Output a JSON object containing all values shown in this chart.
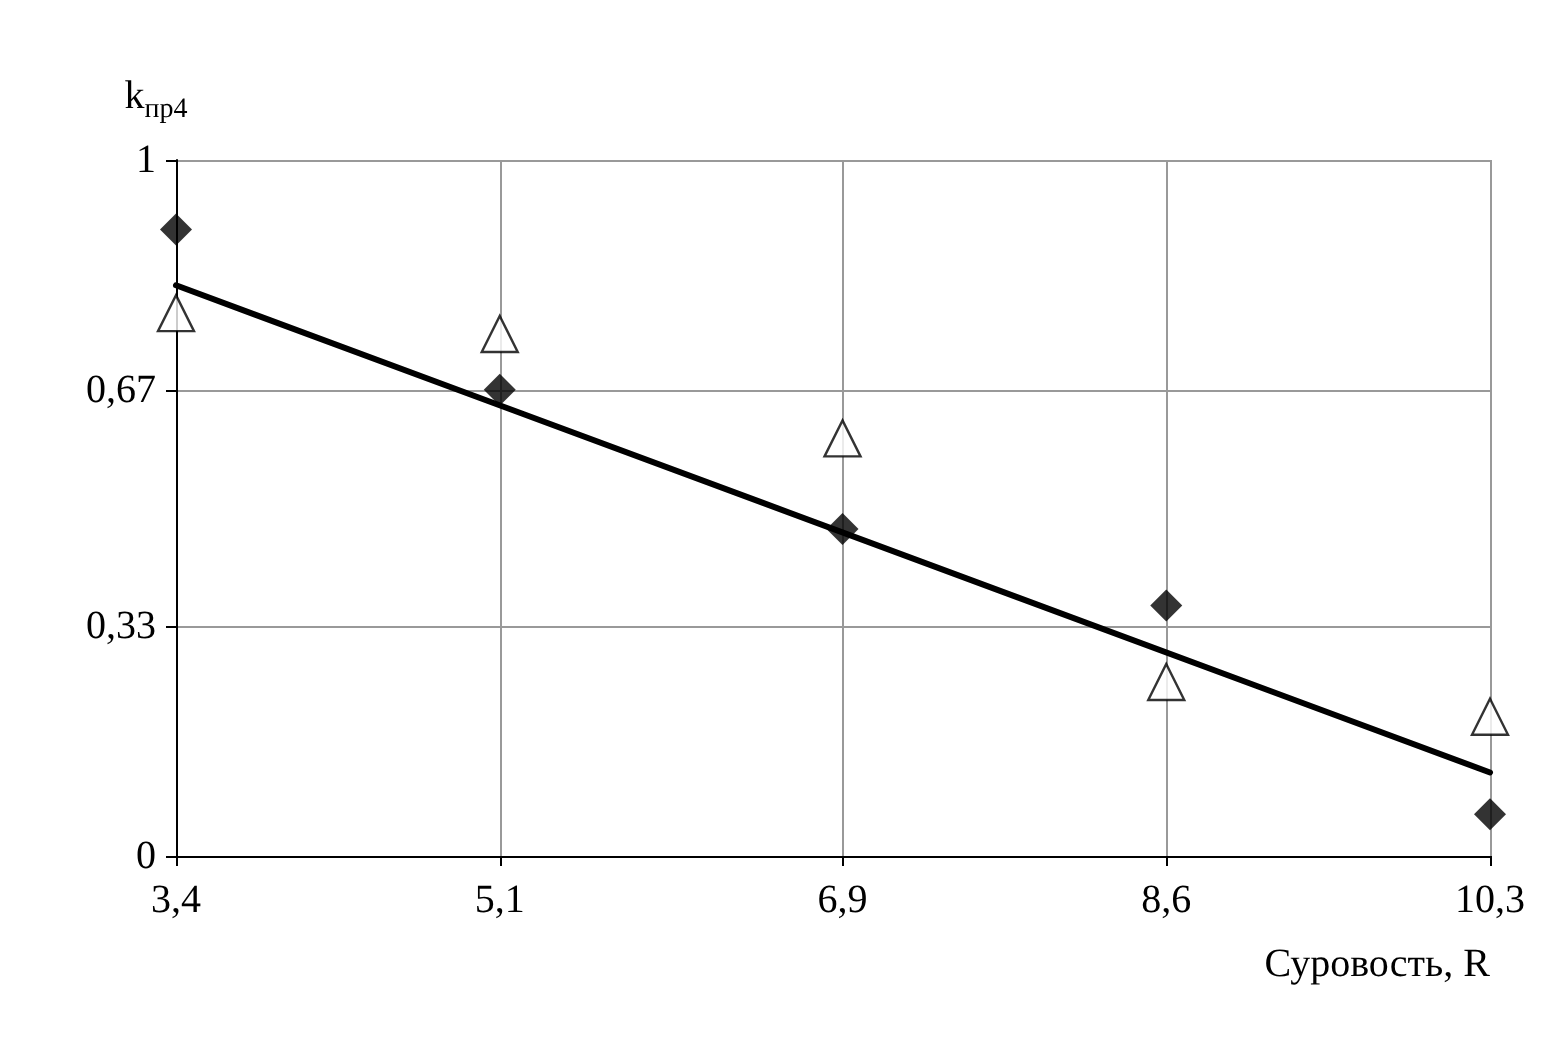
{
  "chart_data": {
    "type": "scatter",
    "xlabel": "Суровость, R",
    "ylabel": "k$_{пр4}$",
    "series": [
      {
        "marker": "diamond",
        "color": "#000000",
        "x": [
          3.4,
          5.1,
          6.9,
          8.6,
          10.3
        ],
        "values": [
          0.9,
          0.67,
          0.47,
          0.36,
          0.06
        ]
      },
      {
        "marker": "triangle",
        "color": "#000000",
        "x": [
          3.4,
          5.1,
          6.9,
          8.6,
          10.3
        ],
        "values": [
          0.78,
          0.75,
          0.6,
          0.25,
          0.2
        ]
      },
      {
        "type": "line",
        "marker": "none",
        "color": "#000000",
        "x": [
          3.4,
          10.3
        ],
        "values": [
          0.82,
          0.12
        ]
      }
    ],
    "xlim": [
      3.4,
      10.3
    ],
    "xticks": [
      {
        "value": 3.4,
        "label": "3,4"
      },
      {
        "value": 5.1,
        "label": "5,1"
      },
      {
        "value": 6.9,
        "label": "6,9"
      },
      {
        "value": 8.6,
        "label": "8,6"
      },
      {
        "value": 10.3,
        "label": "10,3"
      }
    ],
    "ylim": [
      0,
      1
    ],
    "yticks": [
      0,
      {
        "value": 0.33,
        "label": "0,33"
      },
      {
        "value": 0.67,
        "label": "0,67"
      },
      1
    ],
    "grid": true
  }
}
